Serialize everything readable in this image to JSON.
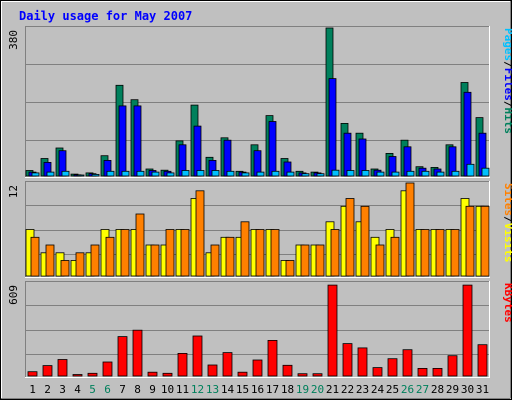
{
  "chart_data": {
    "title": "Daily usage for May 2007",
    "x": [
      "1",
      "2",
      "3",
      "4",
      "5",
      "6",
      "7",
      "8",
      "9",
      "10",
      "11",
      "12",
      "13",
      "14",
      "15",
      "16",
      "17",
      "18",
      "19",
      "20",
      "21",
      "22",
      "23",
      "24",
      "25",
      "26",
      "27",
      "28",
      "29",
      "30",
      "31"
    ],
    "weekend_days": [
      "5",
      "6",
      "12",
      "13",
      "19",
      "20",
      "26",
      "27"
    ],
    "colors": {
      "hits": "#00805c",
      "files": "#0000ff",
      "pages": "#00c0ff",
      "visits": "#ffff00",
      "sites": "#ff8000",
      "kbytes": "#ff0000",
      "title": "#0000ff",
      "weekend_label": "#00805c"
    },
    "panels": [
      {
        "type": "bar",
        "y_max_label": "380",
        "ylim": [
          0,
          380
        ],
        "legend": [
          {
            "text": "Pages",
            "color": "#00c0ff"
          },
          {
            "text": "Files",
            "color": "#0000ff"
          },
          {
            "text": "Hits",
            "color": "#00805c"
          }
        ],
        "series": [
          {
            "name": "Hits",
            "values": [
              14,
              45,
              72,
              5,
              8,
              52,
              233,
              196,
              18,
              15,
              90,
              182,
              48,
              98,
              12,
              80,
              155,
              45,
              12,
              10,
              380,
              135,
              110,
              18,
              58,
              92,
              24,
              22,
              80,
              240,
              150
            ]
          },
          {
            "name": "Files",
            "values": [
              10,
              35,
              65,
              3,
              6,
              40,
              180,
              180,
              14,
              12,
              80,
              128,
              40,
              92,
              10,
              65,
              140,
              36,
              8,
              8,
              250,
              110,
              95,
              15,
              50,
              75,
              20,
              18,
              75,
              215,
              110
            ]
          },
          {
            "name": "Pages",
            "values": [
              8,
              10,
              12,
              2,
              4,
              12,
              12,
              12,
              10,
              8,
              14,
              14,
              14,
              12,
              8,
              10,
              12,
              10,
              6,
              6,
              15,
              14,
              14,
              10,
              10,
              12,
              12,
              10,
              12,
              30,
              20
            ]
          }
        ]
      },
      {
        "type": "bar",
        "y_max_label": "12",
        "ylim": [
          0,
          12
        ],
        "legend": [
          {
            "text": "Sites",
            "color": "#ff8000"
          },
          {
            "text": "Visits",
            "color": "#ffff00"
          }
        ],
        "series": [
          {
            "name": "Visits",
            "values": [
              6,
              3,
              3,
              2,
              3,
              6,
              6,
              6,
              4,
              4,
              6,
              10,
              3,
              5,
              5,
              6,
              6,
              2,
              4,
              4,
              7,
              9,
              7,
              5,
              6,
              11,
              6,
              6,
              6,
              10,
              9
            ]
          },
          {
            "name": "Sites",
            "values": [
              5,
              4,
              2,
              3,
              4,
              5,
              6,
              8,
              4,
              6,
              6,
              11,
              4,
              5,
              7,
              6,
              6,
              2,
              4,
              4,
              6,
              10,
              9,
              4,
              5,
              12,
              6,
              6,
              6,
              9,
              9
            ]
          }
        ]
      },
      {
        "type": "bar",
        "y_max_label": "609",
        "ylim": [
          0,
          609
        ],
        "legend": [
          {
            "text": "KBytes",
            "color": "#ff0000"
          }
        ],
        "series": [
          {
            "name": "KBytes",
            "values": [
              28,
              68,
              108,
              10,
              18,
              92,
              258,
              300,
              25,
              18,
              148,
              262,
              72,
              153,
              25,
              105,
              233,
              70,
              15,
              15,
              595,
              212,
              184,
              55,
              113,
              172,
              50,
              50,
              133,
              595,
              205
            ]
          }
        ]
      }
    ]
  }
}
